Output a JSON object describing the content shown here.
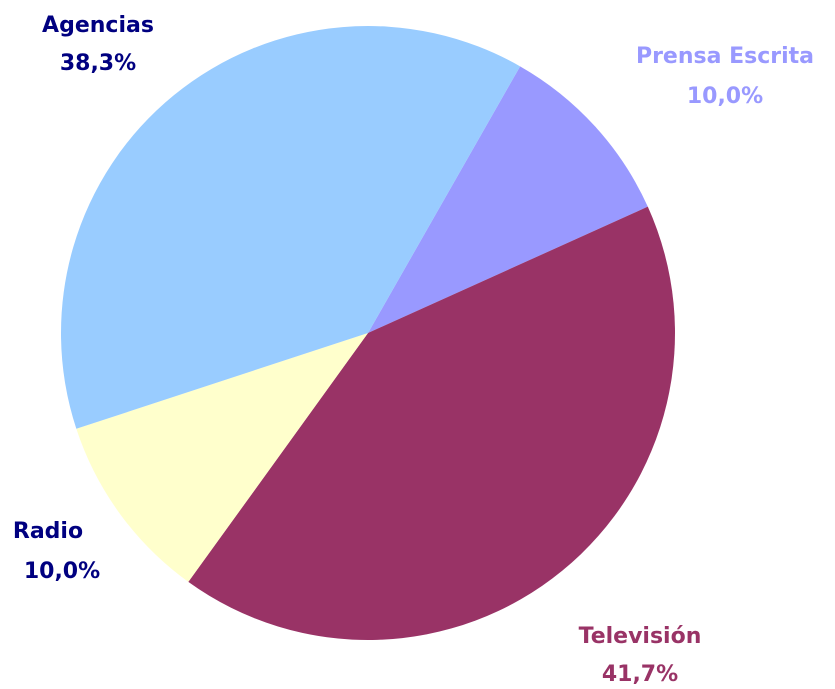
{
  "chart_data": {
    "type": "pie",
    "categories": [
      "Prensa Escrita",
      "Televisión",
      "Radio",
      "Agencias"
    ],
    "values": [
      10.0,
      41.7,
      10.0,
      38.3
    ],
    "value_labels": [
      "10,0%",
      "41,7%",
      "10,0%",
      "38,3%"
    ],
    "colors": [
      "#9999ff",
      "#993366",
      "#ffffcc",
      "#99ccff"
    ],
    "label_colors": [
      "#9999ff",
      "#993366",
      "#000080",
      "#000080"
    ]
  }
}
